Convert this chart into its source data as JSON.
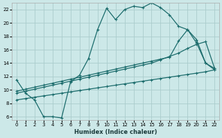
{
  "xlabel": "Humidex (Indice chaleur)",
  "background_color": "#cce8e8",
  "grid_color": "#aacccc",
  "line_color": "#1a6b6b",
  "xlim": [
    -0.5,
    22.5
  ],
  "ylim": [
    5.5,
    23.0
  ],
  "xticks": [
    0,
    1,
    2,
    3,
    4,
    5,
    6,
    7,
    8,
    9,
    10,
    11,
    12,
    13,
    14,
    15,
    16,
    17,
    18,
    19,
    20,
    21,
    22
  ],
  "yticks": [
    6,
    8,
    10,
    12,
    14,
    16,
    18,
    20,
    22
  ],
  "curve1_x": [
    0,
    1,
    2,
    3,
    4,
    5,
    6,
    7,
    8,
    9,
    10,
    11,
    12,
    13,
    14,
    15,
    16,
    17,
    18,
    19,
    20,
    21,
    22
  ],
  "curve1_y": [
    11.5,
    9.5,
    8.5,
    6.0,
    6.0,
    5.8,
    11.2,
    12.2,
    14.7,
    19.0,
    22.2,
    20.5,
    22.0,
    22.5,
    22.3,
    23.0,
    22.3,
    21.2,
    19.5,
    19.0,
    17.0,
    14.0,
    13.0
  ],
  "curve2_x": [
    0,
    1,
    2,
    3,
    4,
    5,
    6,
    7,
    8,
    9,
    10,
    11,
    12,
    13,
    14,
    15,
    16,
    17,
    18,
    19,
    20,
    21,
    22
  ],
  "curve2_y": [
    8.5,
    8.7,
    8.9,
    9.1,
    9.3,
    9.5,
    9.7,
    9.9,
    10.1,
    10.3,
    10.5,
    10.7,
    10.9,
    11.1,
    11.3,
    11.5,
    11.7,
    11.9,
    12.1,
    12.3,
    12.5,
    12.7,
    13.0
  ],
  "curve3_x": [
    0,
    1,
    2,
    3,
    4,
    5,
    6,
    7,
    8,
    9,
    10,
    11,
    12,
    13,
    14,
    15,
    16,
    17,
    18,
    19,
    20,
    21,
    22
  ],
  "curve3_y": [
    9.5,
    9.8,
    10.1,
    10.4,
    10.7,
    11.0,
    11.3,
    11.6,
    11.9,
    12.2,
    12.5,
    12.8,
    13.1,
    13.4,
    13.7,
    14.0,
    14.5,
    15.0,
    15.5,
    16.2,
    16.8,
    17.2,
    13.2
  ],
  "curve4_x": [
    0,
    1,
    2,
    3,
    4,
    5,
    6,
    7,
    8,
    9,
    10,
    11,
    12,
    13,
    14,
    15,
    16,
    17,
    18,
    19,
    20,
    21,
    22
  ],
  "curve4_y": [
    9.8,
    10.1,
    10.4,
    10.7,
    11.0,
    11.3,
    11.6,
    11.9,
    12.2,
    12.5,
    12.8,
    13.1,
    13.4,
    13.7,
    14.0,
    14.3,
    14.6,
    14.9,
    17.3,
    19.0,
    17.5,
    14.0,
    13.2
  ],
  "figsize": [
    3.2,
    2.0
  ],
  "dpi": 100
}
